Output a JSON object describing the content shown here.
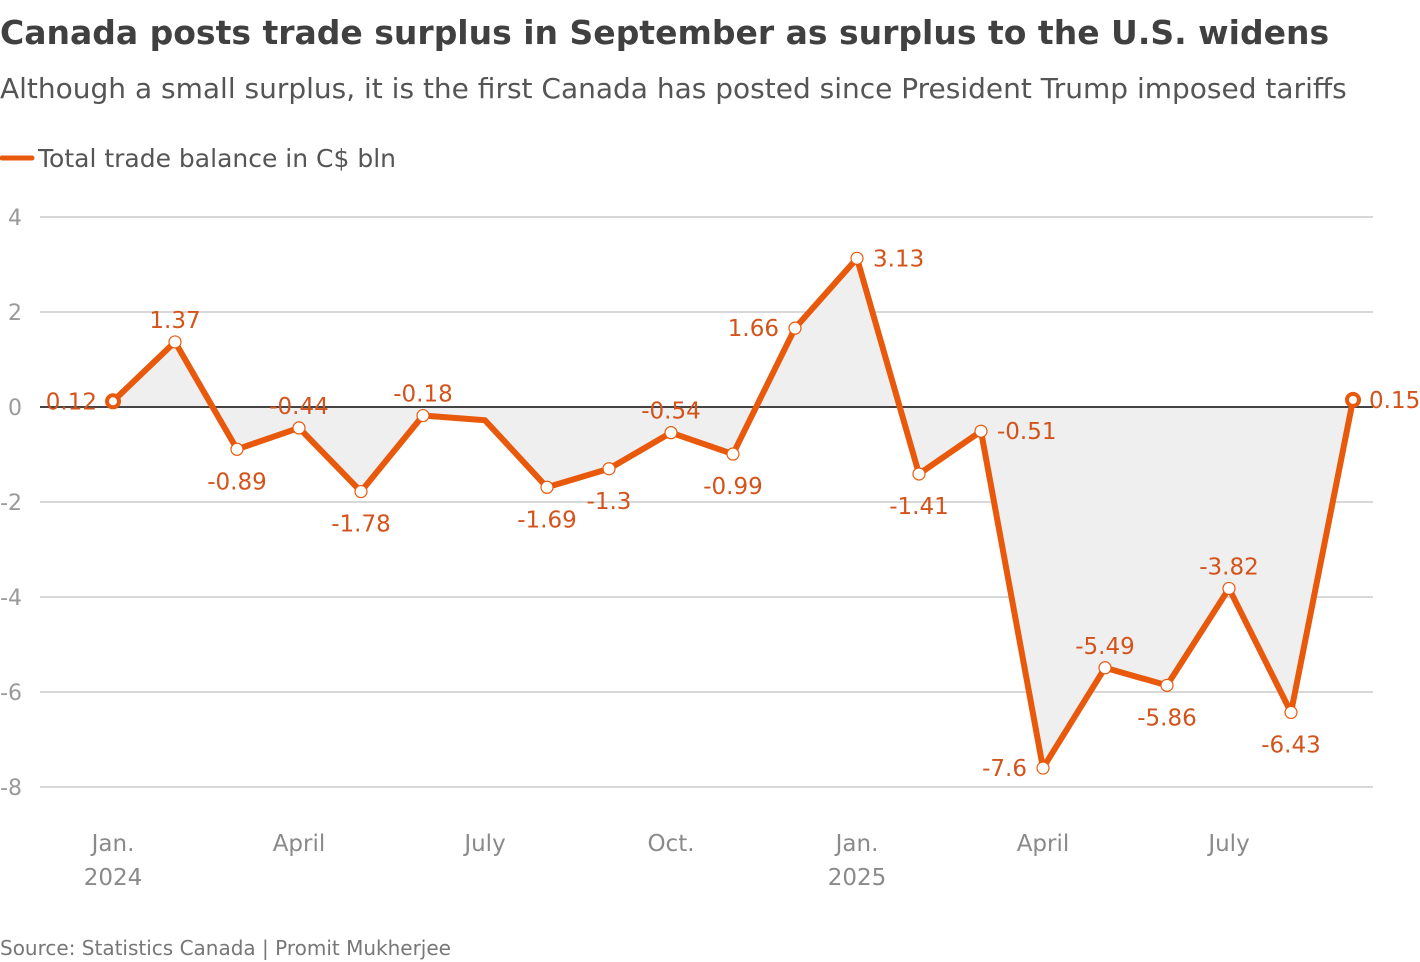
{
  "chart_data": {
    "type": "line",
    "title": "Canada posts trade surplus in September as surplus to the U.S. widens",
    "subtitle": "Although a small surplus, it is the first Canada has posted since President Trump imposed tariffs",
    "source": "Source: Statistics Canada | Promit Mukherjee",
    "ylim": [
      -8,
      4
    ],
    "yticks": [
      "4",
      "2",
      "0",
      "-2",
      "-4",
      "-6",
      "-8"
    ],
    "xticks": [
      {
        "month_index": 0,
        "label": "Jan.",
        "sub": "2024"
      },
      {
        "month_index": 3,
        "label": "April",
        "sub": ""
      },
      {
        "month_index": 6,
        "label": "July",
        "sub": ""
      },
      {
        "month_index": 9,
        "label": "Oct.",
        "sub": ""
      },
      {
        "month_index": 12,
        "label": "Jan.",
        "sub": "2025"
      },
      {
        "month_index": 15,
        "label": "April",
        "sub": ""
      },
      {
        "month_index": 18,
        "label": "July",
        "sub": ""
      }
    ],
    "grid": true,
    "legend_position": "top-left",
    "color": "#e8590c",
    "area_color": "#efefef",
    "series": [
      {
        "name": "Total trade balance in C$ bln",
        "x": [
          "2024-01",
          "2024-02",
          "2024-03",
          "2024-04",
          "2024-05",
          "2024-06",
          "2024-07",
          "2024-08",
          "2024-09",
          "2024-10",
          "2024-11",
          "2024-12",
          "2025-01",
          "2025-02",
          "2025-03",
          "2025-04",
          "2025-05",
          "2025-06",
          "2025-07",
          "2025-08",
          "2025-09"
        ],
        "values": [
          0.12,
          1.37,
          -0.89,
          -0.44,
          -1.78,
          -0.18,
          -0.28,
          -1.69,
          -1.3,
          -0.54,
          -0.99,
          1.66,
          3.13,
          -1.41,
          -0.51,
          -7.6,
          -5.49,
          -5.86,
          -3.82,
          -6.43,
          0.15
        ],
        "labels": [
          "0.12",
          "1.37",
          "-0.89",
          "-0.44",
          "-1.78",
          "-0.18",
          "",
          "-1.69",
          "-1.3",
          "-0.54",
          "-0.99",
          "1.66",
          "3.13",
          "-1.41",
          "-0.51",
          "-7.6",
          "-5.49",
          "-5.86",
          "-3.82",
          "-6.43",
          "0.15"
        ],
        "label_placement": [
          "left",
          "above",
          "below",
          "above",
          "below",
          "above",
          "none",
          "below",
          "below",
          "above",
          "below",
          "left",
          "right",
          "below",
          "right",
          "left",
          "above",
          "below",
          "above",
          "below",
          "right"
        ]
      }
    ]
  }
}
